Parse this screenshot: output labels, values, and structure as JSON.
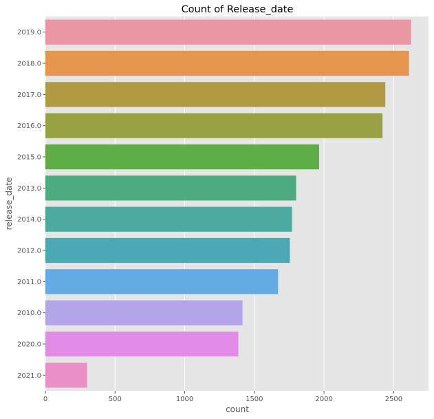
{
  "chart_data": {
    "type": "bar",
    "orientation": "horizontal",
    "title": "Count of Release_date",
    "xlabel": "count",
    "ylabel": "release_date",
    "categories": [
      "2019.0",
      "2018.0",
      "2017.0",
      "2016.0",
      "2015.0",
      "2013.0",
      "2014.0",
      "2012.0",
      "2011.0",
      "2010.0",
      "2020.0",
      "2021.0"
    ],
    "values": [
      2625,
      2610,
      2440,
      2420,
      1965,
      1800,
      1770,
      1755,
      1670,
      1415,
      1385,
      300
    ],
    "colors": [
      "#ea96a3",
      "#e6954f",
      "#b29a42",
      "#98a244",
      "#5ead47",
      "#4cac80",
      "#4ba9a0",
      "#4ca8b5",
      "#64aae3",
      "#b4a4e8",
      "#e18ae6",
      "#ea8fc8"
    ],
    "xlim": [
      0,
      2750
    ],
    "xticks": [
      0,
      500,
      1000,
      1500,
      2000,
      2500
    ],
    "grid": true,
    "legend": "none",
    "style": {
      "panel_background": "#e5e5e5",
      "grid_color": "#ffffff",
      "tick_color": "#555555"
    }
  }
}
